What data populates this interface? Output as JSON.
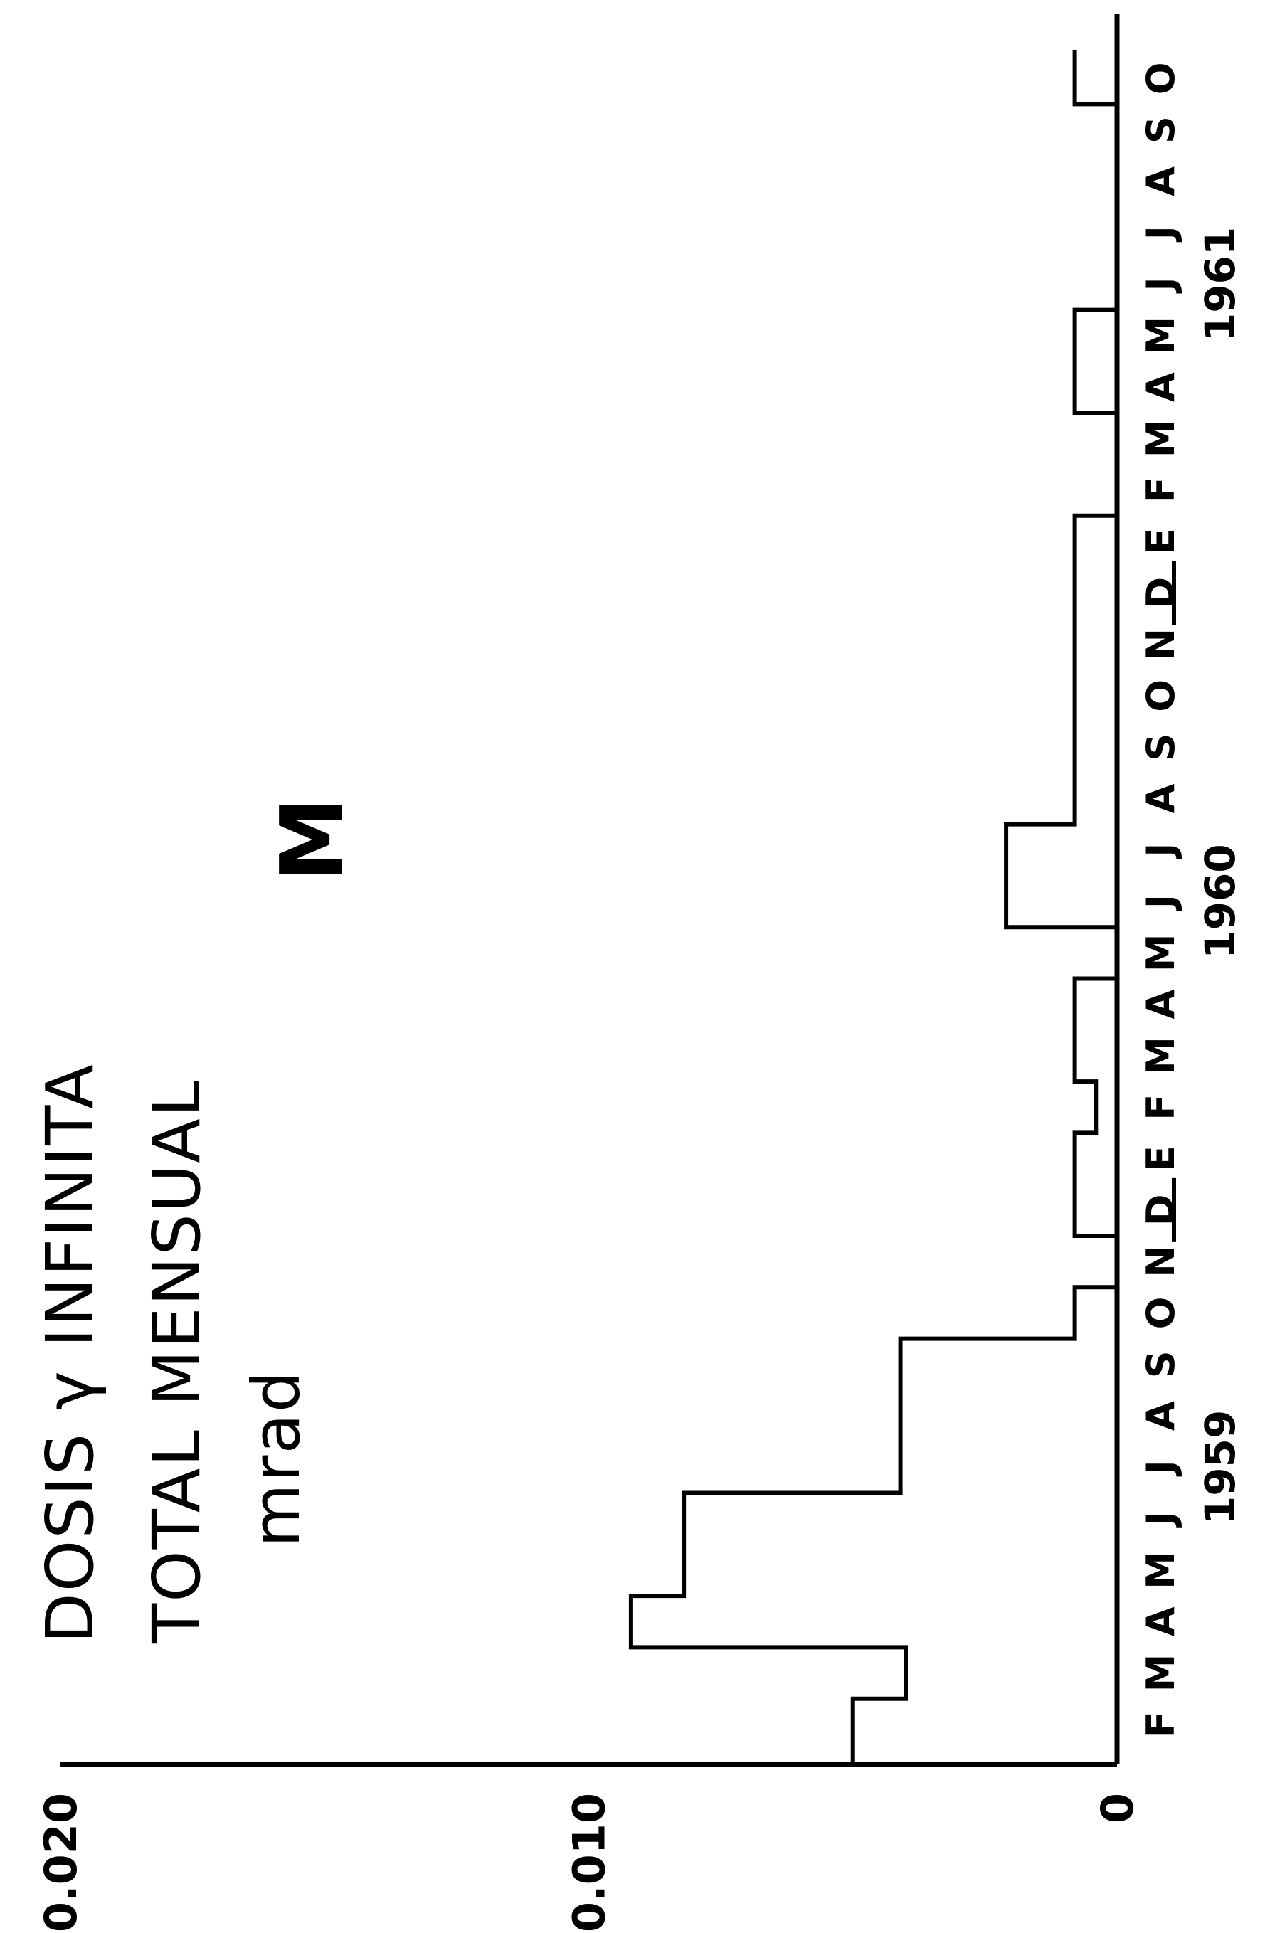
{
  "chart_data": {
    "type": "step",
    "title_lines": [
      "DOSIS γ INFINITA",
      "TOTAL  MENSUAL",
      "mrad"
    ],
    "panel_label": "M",
    "ylabel": "",
    "xlabel": "",
    "ylim": [
      0,
      0.02
    ],
    "y_ticks": [
      "0",
      "0.010",
      "0.020"
    ],
    "month_labels": [
      "F",
      "M",
      "A",
      "M",
      "J",
      "J",
      "A",
      "S",
      "O",
      "N",
      "D",
      "E",
      "F",
      "M",
      "A",
      "M",
      "J",
      "J",
      "A",
      "S",
      "O",
      "N",
      "D",
      "E",
      "F",
      "M",
      "A",
      "M",
      "J",
      "J",
      "A",
      "S",
      "O"
    ],
    "year_labels": [
      {
        "label": "1959",
        "month_index": 5.5
      },
      {
        "label": "1960",
        "month_index": 16.5
      },
      {
        "label": "1961",
        "month_index": 28.5
      }
    ],
    "year_separators": [
      10.5,
      22.5
    ],
    "values": [
      0.005,
      0.004,
      0.0092,
      0.0082,
      0.0082,
      0.0041,
      0.0041,
      0.0041,
      0.0008,
      0.0,
      0.0008,
      0.0008,
      0.0004,
      0.0008,
      0.0008,
      0.0,
      0.0021,
      0.0021,
      0.0008,
      0.0008,
      0.0008,
      0.0008,
      0.0008,
      0.0008,
      0.0,
      0.0,
      0.0008,
      0.0008,
      0.0,
      0.0,
      0.0,
      0.0,
      0.0008
    ],
    "colors": {
      "line": "#000000",
      "background": "#ffffff"
    }
  }
}
